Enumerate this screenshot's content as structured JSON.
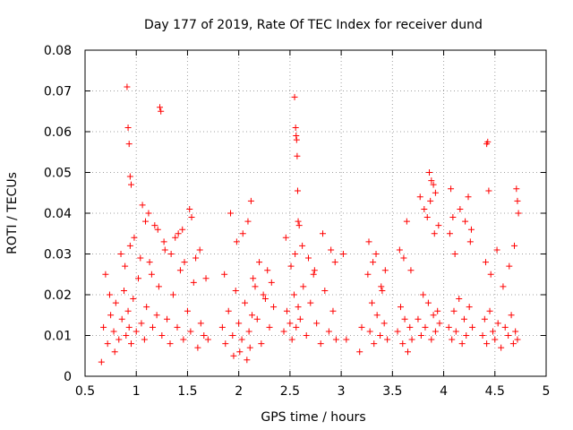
{
  "chart_data": {
    "type": "scatter",
    "title": "Day 177 of 2019, Rate Of TEC Index for receiver dund",
    "xlabel": "GPS time / hours",
    "ylabel": "ROTI / TECUs",
    "xlim": [
      0.5,
      5.0
    ],
    "ylim": [
      0.0,
      0.08
    ],
    "x_ticks": [
      0.5,
      1.0,
      1.5,
      2.0,
      2.5,
      3.0,
      3.5,
      4.0,
      4.5,
      5.0
    ],
    "x_tick_labels": [
      "0.5",
      "1",
      "1.5",
      "2",
      "2.5",
      "3",
      "3.5",
      "4",
      "4.5",
      "5"
    ],
    "y_ticks": [
      0.0,
      0.01,
      0.02,
      0.03,
      0.04,
      0.05,
      0.06,
      0.07,
      0.08
    ],
    "y_tick_labels": [
      "0",
      "0.01",
      "0.02",
      "0.03",
      "0.04",
      "0.05",
      "0.06",
      "0.07",
      "0.08"
    ],
    "grid": true,
    "marker": "plus",
    "series": [
      {
        "name": "ROTI",
        "color": "#ff0000",
        "x": [
          0.66,
          0.68,
          0.72,
          0.75,
          0.78,
          0.8,
          0.83,
          0.86,
          0.88,
          0.9,
          0.92,
          0.93,
          0.95,
          0.97,
          1.0,
          1.02,
          1.05,
          1.08,
          1.1,
          1.13,
          1.16,
          1.2,
          1.22,
          1.25,
          1.28,
          1.3,
          1.33,
          1.36,
          1.4,
          1.43,
          1.46,
          1.5,
          1.53,
          1.56,
          1.6,
          1.63,
          1.66,
          1.7,
          0.7,
          0.74,
          0.79,
          0.85,
          0.89,
          0.94,
          0.98,
          1.04,
          1.09,
          1.15,
          1.21,
          1.27,
          1.34,
          1.41,
          1.47,
          1.54,
          1.62,
          1.68,
          0.91,
          0.92,
          0.93,
          0.94,
          0.95,
          1.23,
          1.24,
          1.06,
          1.12,
          1.18,
          1.38,
          1.45,
          1.52,
          1.58,
          1.84,
          1.87,
          1.9,
          1.94,
          1.97,
          2.0,
          2.03,
          2.06,
          2.1,
          2.14,
          2.18,
          2.22,
          2.26,
          2.3,
          2.34,
          1.86,
          1.92,
          1.98,
          2.04,
          2.09,
          2.12,
          2.16,
          2.2,
          2.24,
          2.28,
          2.32,
          1.95,
          2.01,
          2.08,
          2.11,
          2.13,
          2.44,
          2.47,
          2.5,
          2.52,
          2.54,
          2.56,
          2.58,
          2.6,
          2.63,
          2.66,
          2.7,
          2.73,
          2.76,
          2.8,
          2.84,
          2.88,
          2.92,
          2.95,
          2.46,
          2.51,
          2.55,
          2.62,
          2.68,
          2.74,
          2.82,
          2.9,
          2.94,
          2.545,
          2.555,
          2.56,
          2.565,
          2.57,
          2.575,
          2.58,
          2.59,
          3.02,
          3.05,
          3.18,
          3.2,
          3.26,
          3.28,
          3.3,
          3.32,
          3.35,
          3.38,
          3.4,
          3.42,
          3.45,
          3.27,
          3.31,
          3.34,
          3.39,
          3.43,
          3.55,
          3.58,
          3.6,
          3.62,
          3.65,
          3.67,
          3.69,
          3.57,
          3.61,
          3.64,
          3.68,
          3.75,
          3.78,
          3.8,
          3.82,
          3.85,
          3.88,
          3.9,
          3.92,
          3.94,
          3.96,
          3.77,
          3.81,
          3.84,
          3.87,
          3.91,
          3.95,
          3.86,
          3.88,
          3.9,
          3.92,
          4.05,
          4.08,
          4.1,
          4.12,
          4.15,
          4.18,
          4.2,
          4.22,
          4.25,
          4.28,
          4.06,
          4.11,
          4.16,
          4.21,
          4.26,
          4.07,
          4.09,
          4.24,
          4.27,
          4.38,
          4.4,
          4.42,
          4.45,
          4.48,
          4.5,
          4.53,
          4.56,
          4.6,
          4.63,
          4.66,
          4.68,
          4.7,
          4.72,
          4.41,
          4.46,
          4.52,
          4.58,
          4.64,
          4.69,
          4.42,
          4.43,
          4.44,
          4.71,
          4.72,
          4.73
        ],
        "y": [
          0.0035,
          0.012,
          0.008,
          0.015,
          0.011,
          0.018,
          0.009,
          0.014,
          0.021,
          0.01,
          0.016,
          0.012,
          0.008,
          0.019,
          0.011,
          0.024,
          0.013,
          0.009,
          0.017,
          0.028,
          0.012,
          0.015,
          0.022,
          0.01,
          0.031,
          0.014,
          0.008,
          0.02,
          0.012,
          0.026,
          0.009,
          0.016,
          0.011,
          0.023,
          0.007,
          0.013,
          0.01,
          0.009,
          0.025,
          0.02,
          0.006,
          0.03,
          0.027,
          0.032,
          0.034,
          0.029,
          0.038,
          0.025,
          0.036,
          0.033,
          0.03,
          0.035,
          0.028,
          0.039,
          0.031,
          0.024,
          0.071,
          0.061,
          0.057,
          0.049,
          0.047,
          0.066,
          0.065,
          0.042,
          0.04,
          0.037,
          0.034,
          0.036,
          0.041,
          0.029,
          0.012,
          0.008,
          0.016,
          0.01,
          0.021,
          0.013,
          0.009,
          0.018,
          0.011,
          0.024,
          0.014,
          0.008,
          0.019,
          0.012,
          0.017,
          0.025,
          0.04,
          0.033,
          0.035,
          0.038,
          0.043,
          0.022,
          0.028,
          0.02,
          0.026,
          0.023,
          0.005,
          0.006,
          0.004,
          0.007,
          0.015,
          0.011,
          0.016,
          0.013,
          0.009,
          0.02,
          0.012,
          0.017,
          0.014,
          0.022,
          0.01,
          0.018,
          0.025,
          0.013,
          0.008,
          0.021,
          0.011,
          0.016,
          0.009,
          0.034,
          0.027,
          0.03,
          0.032,
          0.029,
          0.026,
          0.035,
          0.031,
          0.028,
          0.0685,
          0.061,
          0.059,
          0.058,
          0.054,
          0.0455,
          0.038,
          0.037,
          0.03,
          0.009,
          0.006,
          0.012,
          0.025,
          0.011,
          0.018,
          0.008,
          0.015,
          0.01,
          0.021,
          0.013,
          0.009,
          0.033,
          0.028,
          0.03,
          0.022,
          0.026,
          0.011,
          0.017,
          0.008,
          0.014,
          0.006,
          0.012,
          0.009,
          0.031,
          0.029,
          0.038,
          0.026,
          0.014,
          0.01,
          0.02,
          0.012,
          0.018,
          0.009,
          0.015,
          0.011,
          0.016,
          0.013,
          0.044,
          0.041,
          0.039,
          0.043,
          0.035,
          0.037,
          0.05,
          0.048,
          0.047,
          0.045,
          0.012,
          0.009,
          0.016,
          0.011,
          0.019,
          0.008,
          0.014,
          0.01,
          0.017,
          0.012,
          0.035,
          0.03,
          0.041,
          0.038,
          0.033,
          0.046,
          0.039,
          0.044,
          0.036,
          0.01,
          0.014,
          0.008,
          0.016,
          0.011,
          0.009,
          0.013,
          0.007,
          0.012,
          0.01,
          0.015,
          0.008,
          0.011,
          0.009,
          0.028,
          0.025,
          0.031,
          0.022,
          0.027,
          0.032,
          0.057,
          0.0575,
          0.0455,
          0.046,
          0.043,
          0.04
        ]
      }
    ]
  }
}
